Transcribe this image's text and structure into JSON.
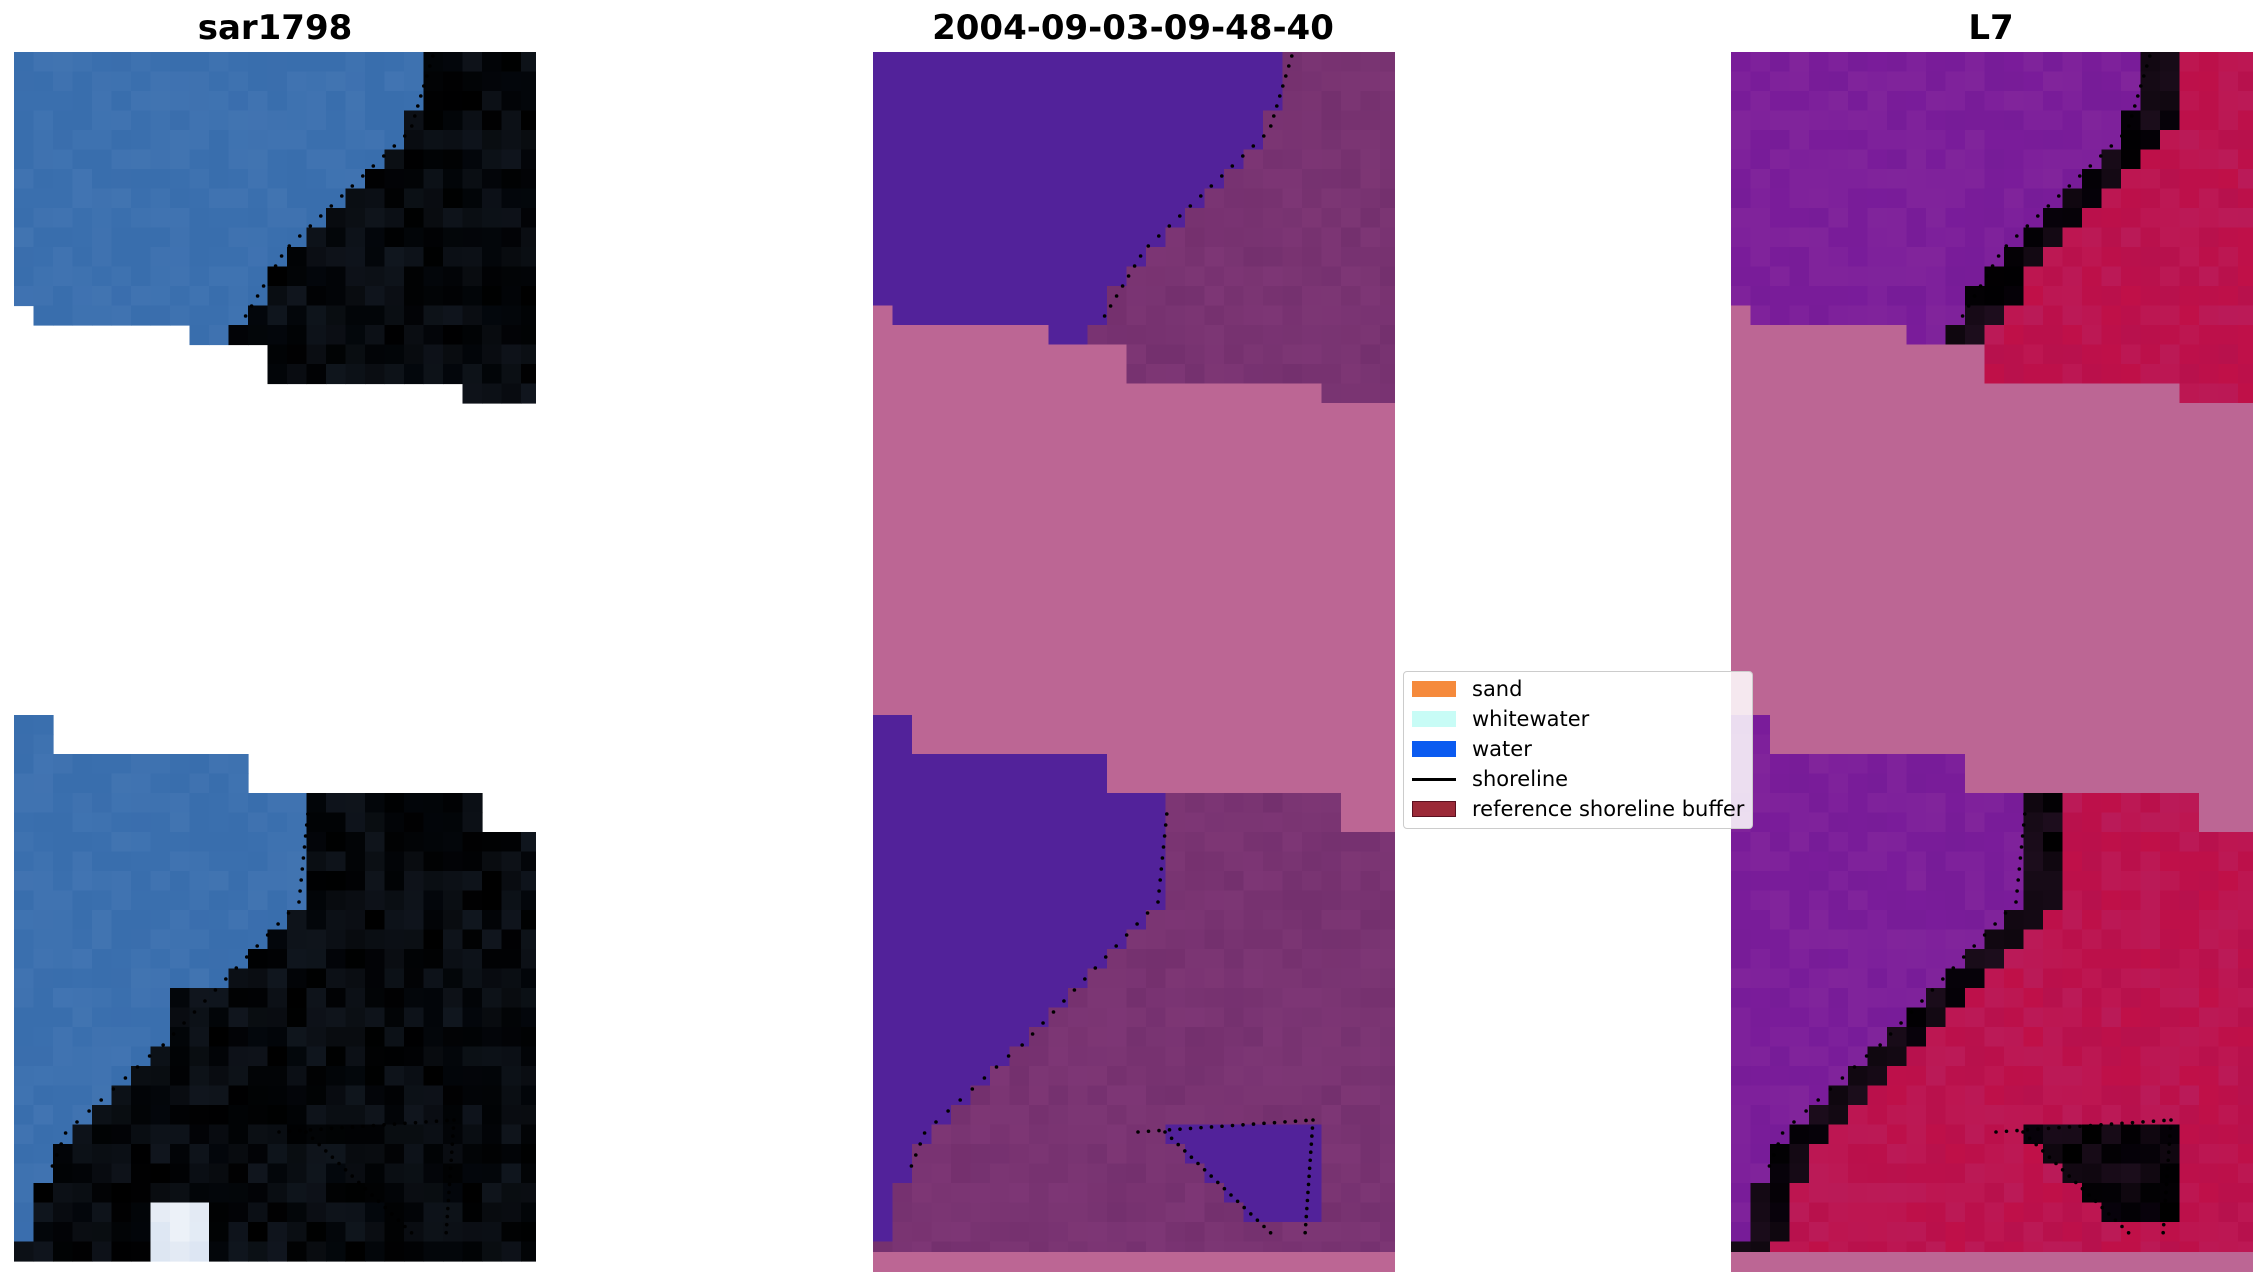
{
  "panels": [
    {
      "title": "sar1798",
      "kind": "rgb"
    },
    {
      "title": "2004-09-03-09-48-40",
      "kind": "classified"
    },
    {
      "title": "L7",
      "kind": "index"
    }
  ],
  "legend": {
    "items": [
      {
        "label": "sand",
        "color": "#f58a3c",
        "type": "patch"
      },
      {
        "label": "whitewater",
        "color": "#c8fcf6",
        "type": "patch"
      },
      {
        "label": "water",
        "color": "#0b5bf0",
        "type": "patch"
      },
      {
        "label": "shoreline",
        "color": "#000000",
        "type": "line"
      },
      {
        "label": "reference shoreline buffer",
        "color": "#9b2a38",
        "type": "patch"
      }
    ]
  },
  "colors": {
    "nodata": "#bc6694",
    "rgb_water": "#3a6fae",
    "rgb_sand": "#a5b6d6",
    "rgb_foam": "#f0f4fa",
    "class_water": "#52229a",
    "class_land": "#74306e",
    "class_buffer": "#c0333f",
    "index_water": "#7a1c9a",
    "index_land": "#c01048"
  }
}
